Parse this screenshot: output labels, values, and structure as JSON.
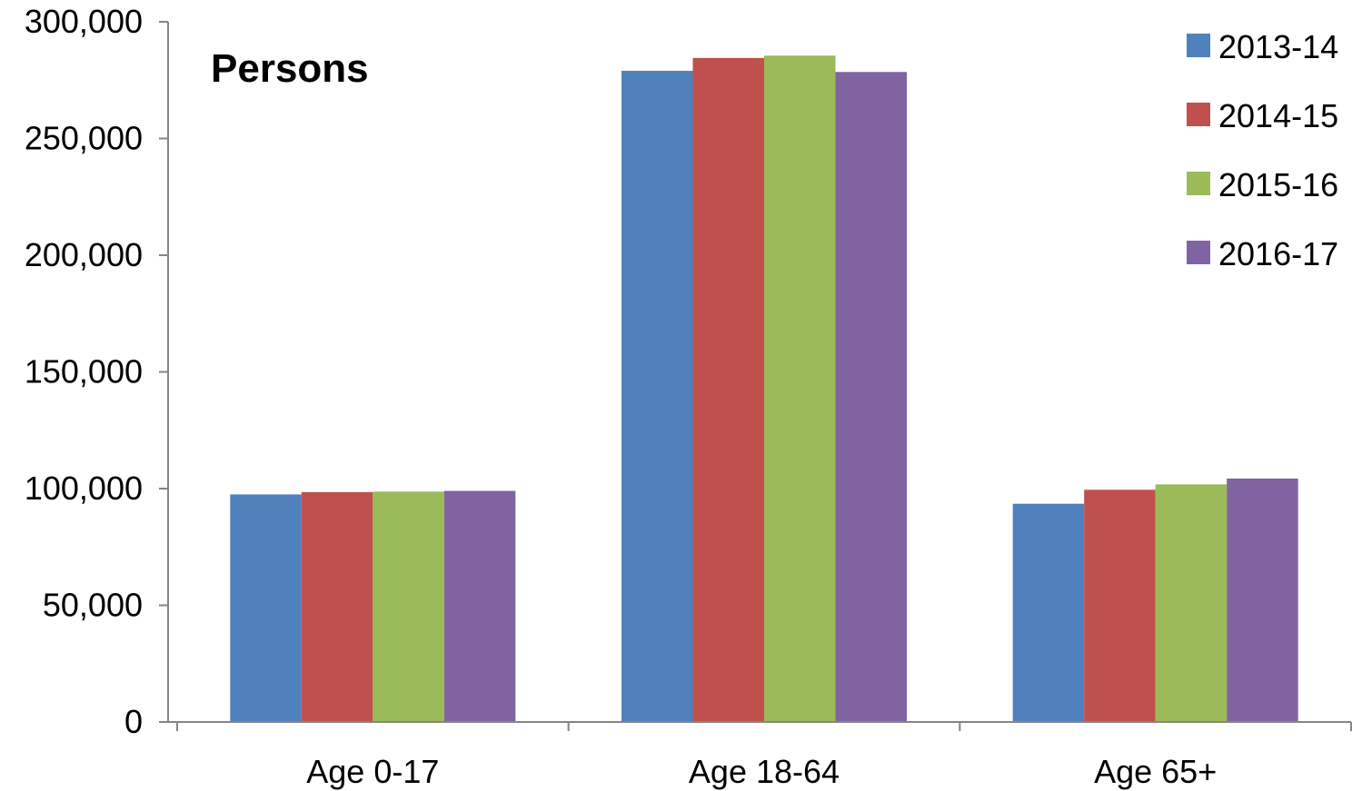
{
  "chart_data": {
    "type": "bar",
    "title": "Persons",
    "xlabel": "",
    "ylabel": "",
    "categories": [
      "Age 0-17",
      "Age 18-64",
      "Age 65+"
    ],
    "series": [
      {
        "name": "2013-14",
        "color": "#4F81BD",
        "values": [
          97500,
          279000,
          93500
        ]
      },
      {
        "name": "2014-15",
        "color": "#C0504D",
        "values": [
          98500,
          284500,
          99500
        ]
      },
      {
        "name": "2015-16",
        "color": "#9BBB59",
        "values": [
          98700,
          285500,
          101800
        ]
      },
      {
        "name": "2016-17",
        "color": "#8064A2",
        "values": [
          99000,
          278500,
          104300
        ]
      }
    ],
    "ylim": [
      0,
      300000
    ],
    "yticks": [
      0,
      50000,
      100000,
      150000,
      200000,
      250000,
      300000
    ],
    "ytick_labels": [
      "0",
      "50,000",
      "100,000",
      "150,000",
      "200,000",
      "250,000",
      "300,000"
    ],
    "grid": false,
    "legend": "top-right"
  }
}
